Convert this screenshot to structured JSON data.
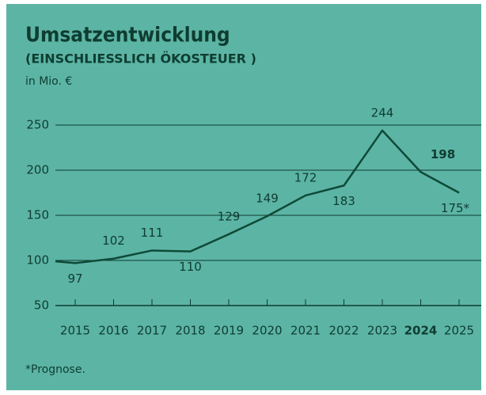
{
  "chart_data": {
    "type": "line",
    "title": "Umsatzentwicklung",
    "subtitle": "(EINSCHLIESSLICH ÖKOSTEUER )",
    "y_label": "in Mio. €",
    "footnote": "*Prognose.",
    "categories": [
      null,
      "2015",
      "2016",
      "2017",
      "2018",
      "2019",
      "2020",
      "2021",
      "2022",
      "2023",
      "2024",
      "2025"
    ],
    "values": [
      99,
      97,
      102,
      111,
      110,
      129,
      149,
      172,
      183,
      244,
      198,
      175
    ],
    "value_labels": [
      null,
      "97",
      "102",
      "111",
      "110",
      "129",
      "149",
      "172",
      "183",
      "244",
      "198",
      "175*"
    ],
    "highlight_index": 10,
    "color": "#0e4a38",
    "ylim": [
      50,
      250
    ],
    "yticks": [
      50,
      100,
      150,
      200,
      250
    ],
    "grid": true
  }
}
